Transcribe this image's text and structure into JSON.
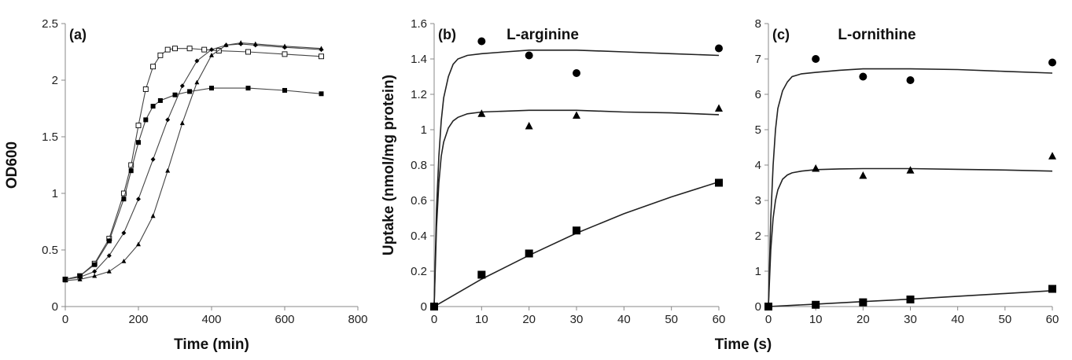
{
  "chart_data": [
    {
      "type": "line",
      "panel_label": "(a)",
      "title": "",
      "xlabel": "Time (min)",
      "ylabel": "OD600",
      "xlim": [
        0,
        800
      ],
      "ylim": [
        0,
        2.5
      ],
      "xticks": [
        "0",
        "200",
        "400",
        "600",
        "800"
      ],
      "yticks": [
        "0",
        "0.5",
        "1",
        "1.5",
        "2",
        "2.5"
      ],
      "grid": false,
      "series": [
        {
          "marker": "open-square",
          "x": [
            0,
            40,
            80,
            120,
            160,
            180,
            200,
            220,
            240,
            260,
            280,
            300,
            340,
            380,
            420,
            500,
            600,
            700
          ],
          "y": [
            0.24,
            0.27,
            0.38,
            0.6,
            1.0,
            1.25,
            1.6,
            1.92,
            2.12,
            2.22,
            2.27,
            2.28,
            2.28,
            2.27,
            2.26,
            2.25,
            2.23,
            2.21
          ]
        },
        {
          "marker": "filled-square",
          "x": [
            0,
            40,
            80,
            120,
            160,
            180,
            200,
            220,
            240,
            260,
            300,
            340,
            400,
            500,
            600,
            700
          ],
          "y": [
            0.24,
            0.27,
            0.37,
            0.58,
            0.95,
            1.2,
            1.45,
            1.65,
            1.77,
            1.82,
            1.87,
            1.9,
            1.93,
            1.93,
            1.91,
            1.88
          ]
        },
        {
          "marker": "filled-diamond",
          "x": [
            0,
            40,
            80,
            120,
            160,
            200,
            240,
            280,
            320,
            360,
            400,
            440,
            480,
            520,
            600,
            700
          ],
          "y": [
            0.24,
            0.26,
            0.31,
            0.45,
            0.65,
            0.95,
            1.3,
            1.65,
            1.95,
            2.17,
            2.27,
            2.31,
            2.32,
            2.31,
            2.29,
            2.27
          ]
        },
        {
          "marker": "filled-triangle",
          "x": [
            0,
            40,
            80,
            120,
            160,
            200,
            240,
            280,
            320,
            360,
            400,
            440,
            480,
            520,
            600,
            700
          ],
          "y": [
            0.23,
            0.24,
            0.27,
            0.31,
            0.4,
            0.55,
            0.8,
            1.2,
            1.62,
            1.98,
            2.22,
            2.31,
            2.33,
            2.32,
            2.3,
            2.28
          ]
        }
      ]
    },
    {
      "type": "scatter",
      "panel_label": "(b)",
      "title": "L-arginine",
      "xlabel": "",
      "ylabel": "Uptake (nmol/mg protein)",
      "xlim": [
        0,
        60
      ],
      "ylim": [
        0,
        1.6
      ],
      "xticks": [
        "0",
        "10",
        "20",
        "30",
        "40",
        "50",
        "60"
      ],
      "yticks": [
        "0",
        "0.2",
        "0.4",
        "0.6",
        "0.8",
        "1",
        "1.2",
        "1.4",
        "1.6"
      ],
      "grid": false,
      "series": [
        {
          "marker": "circle",
          "x": [
            0,
            10,
            20,
            30,
            60
          ],
          "y": [
            0,
            1.5,
            1.42,
            1.32,
            1.46
          ],
          "fit": {
            "x": [
              0,
              0.5,
              1,
              1.5,
              2,
              3,
              4,
              5,
              7,
              10,
              15,
              20,
              30,
              40,
              50,
              60
            ],
            "y": [
              0,
              0.55,
              0.85,
              1.05,
              1.18,
              1.3,
              1.37,
              1.4,
              1.42,
              1.43,
              1.44,
              1.45,
              1.45,
              1.44,
              1.43,
              1.42
            ]
          }
        },
        {
          "marker": "triangle",
          "x": [
            0,
            10,
            20,
            30,
            60
          ],
          "y": [
            0,
            1.09,
            1.02,
            1.08,
            1.12
          ],
          "fit": {
            "x": [
              0,
              0.5,
              1,
              1.5,
              2,
              3,
              4,
              5,
              7,
              10,
              15,
              20,
              30,
              40,
              50,
              60
            ],
            "y": [
              0,
              0.45,
              0.7,
              0.85,
              0.93,
              1.01,
              1.05,
              1.07,
              1.09,
              1.1,
              1.105,
              1.11,
              1.11,
              1.1,
              1.095,
              1.085
            ]
          }
        },
        {
          "marker": "square",
          "x": [
            0,
            10,
            20,
            30,
            60
          ],
          "y": [
            0,
            0.18,
            0.3,
            0.43,
            0.7
          ],
          "fit": {
            "x": [
              0,
              10,
              20,
              30,
              40,
              50,
              60
            ],
            "y": [
              0,
              0.155,
              0.29,
              0.415,
              0.525,
              0.62,
              0.705
            ]
          }
        }
      ]
    },
    {
      "type": "scatter",
      "panel_label": "(c)",
      "title": "L-ornithine",
      "xlabel": "",
      "ylabel": "",
      "xlim": [
        0,
        60
      ],
      "ylim": [
        0,
        8
      ],
      "xticks": [
        "0",
        "10",
        "20",
        "30",
        "40",
        "50",
        "60"
      ],
      "yticks": [
        "0",
        "1",
        "2",
        "3",
        "4",
        "5",
        "6",
        "7",
        "8"
      ],
      "grid": false,
      "series": [
        {
          "marker": "circle",
          "x": [
            0,
            10,
            20,
            30,
            60
          ],
          "y": [
            0,
            7.0,
            6.5,
            6.4,
            6.9
          ],
          "fit": {
            "x": [
              0,
              0.5,
              1,
              1.5,
              2,
              3,
              4,
              5,
              7,
              10,
              15,
              20,
              30,
              40,
              50,
              60
            ],
            "y": [
              0,
              2.5,
              4.0,
              5.0,
              5.6,
              6.1,
              6.35,
              6.5,
              6.58,
              6.62,
              6.68,
              6.72,
              6.72,
              6.7,
              6.65,
              6.6
            ]
          }
        },
        {
          "marker": "triangle",
          "x": [
            0,
            10,
            20,
            30,
            60
          ],
          "y": [
            0,
            3.9,
            3.7,
            3.85,
            4.25
          ],
          "fit": {
            "x": [
              0,
              0.5,
              1,
              1.5,
              2,
              3,
              4,
              5,
              7,
              10,
              15,
              20,
              30,
              40,
              50,
              60
            ],
            "y": [
              0,
              1.6,
              2.5,
              3.0,
              3.3,
              3.6,
              3.72,
              3.78,
              3.83,
              3.87,
              3.89,
              3.9,
              3.9,
              3.88,
              3.86,
              3.83
            ]
          }
        },
        {
          "marker": "square",
          "x": [
            0,
            10,
            20,
            30,
            60
          ],
          "y": [
            0,
            0.05,
            0.12,
            0.2,
            0.5
          ],
          "fit": {
            "x": [
              0,
              10,
              20,
              30,
              40,
              50,
              60
            ],
            "y": [
              0,
              0.07,
              0.14,
              0.21,
              0.29,
              0.37,
              0.45
            ]
          }
        }
      ]
    }
  ],
  "shared_xlabel": "Time (s)"
}
